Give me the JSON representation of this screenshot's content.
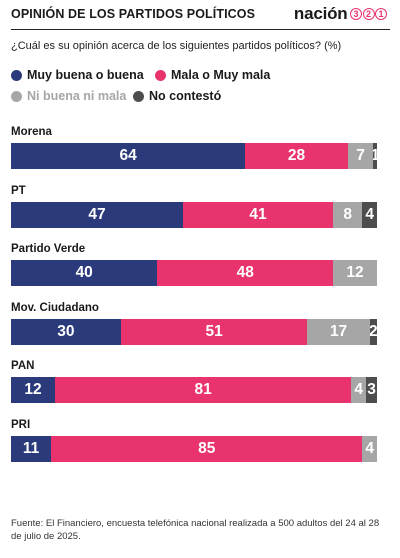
{
  "header": {
    "title": "OPINIÓN DE LOS PARTIDOS POLÍTICOS",
    "brand_word": "nación",
    "brand_digits": [
      "3",
      "2",
      "1"
    ]
  },
  "subtitle": "¿Cuál es su opinión acerca de los siguientes partidos políticos? (%)",
  "colors": {
    "muy_buena_o_buena": "#2b3a7a",
    "mala_o_muy_mala": "#e8336d",
    "ni_buena_ni_mala": "#a6a6a6",
    "no_contesto": "#4d4d4d",
    "brand_accent": "#e8336d"
  },
  "chart_data": {
    "type": "bar",
    "orientation": "horizontal",
    "stacked": true,
    "unit": "%",
    "xlim": [
      0,
      100
    ],
    "grid": false,
    "legend_position": "top",
    "categories": [
      "Morena",
      "PT",
      "Partido Verde",
      "Mov. Ciudadano",
      "PAN",
      "PRI"
    ],
    "series": [
      {
        "name": "Muy buena o buena",
        "color": "#2b3a7a",
        "values": [
          64,
          47,
          40,
          30,
          12,
          11
        ]
      },
      {
        "name": "Mala o Muy mala",
        "color": "#e8336d",
        "values": [
          28,
          41,
          48,
          51,
          81,
          85
        ]
      },
      {
        "name": "Ni buena ni mala",
        "color": "#a6a6a6",
        "values": [
          7,
          8,
          12,
          17,
          4,
          4
        ]
      },
      {
        "name": "No contestó",
        "color": "#4d4d4d",
        "values": [
          1,
          4,
          0,
          2,
          3,
          0
        ]
      }
    ]
  },
  "source": "Fuente: El Financiero, encuesta telefónica nacional realizada a 500 adultos del 24 al 28 de julio de 2025."
}
